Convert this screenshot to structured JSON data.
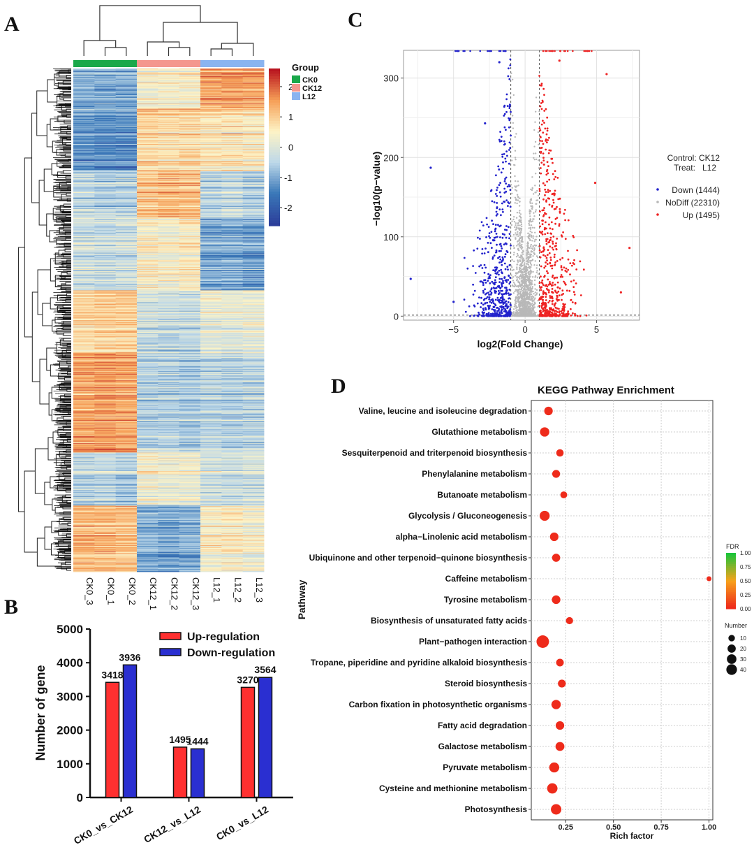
{
  "panel_labels": {
    "a": "A",
    "b": "B",
    "c": "C",
    "d": "D"
  },
  "chart_data": [
    {
      "panel": "A",
      "type": "heatmap",
      "legend_title": "Group",
      "groups": [
        {
          "name": "CK0",
          "color": "#1aa84a"
        },
        {
          "name": "CK12",
          "color": "#f4978e"
        },
        {
          "name": "L12",
          "color": "#8ab4f0"
        }
      ],
      "columns": [
        "CK0_3",
        "CK0_1",
        "CK0_2",
        "CK12_1",
        "CK12_2",
        "CK12_3",
        "L12_1",
        "L12_2",
        "L12_3"
      ],
      "column_groups": [
        "CK0",
        "CK0",
        "CK0",
        "CK12",
        "CK12",
        "CK12",
        "L12",
        "L12",
        "L12"
      ],
      "color_scale": {
        "ticks": [
          2,
          1,
          0,
          -1,
          -2
        ],
        "min": -2.6,
        "max": 2.6,
        "colors": [
          "#2c3e9a",
          "#3a78b8",
          "#bdd8e9",
          "#fdf3c6",
          "#f6a058",
          "#b9141f"
        ]
      },
      "row_blocks": [
        {
          "rows": 60,
          "values": [
            -1.0,
            -1.0,
            -1.0,
            0.4,
            0.4,
            0.4,
            1.5,
            1.6,
            1.5
          ]
        },
        {
          "rows": 95,
          "values": [
            -1.2,
            -1.3,
            -1.3,
            0.9,
            0.8,
            0.9,
            0.7,
            0.7,
            0.6
          ]
        },
        {
          "rows": 70,
          "values": [
            -0.4,
            -0.5,
            -0.5,
            1.1,
            1.3,
            1.2,
            -0.4,
            -0.3,
            -0.5
          ]
        },
        {
          "rows": 110,
          "values": [
            -0.2,
            -0.3,
            -0.2,
            0.5,
            0.4,
            0.6,
            -1.0,
            -1.0,
            -1.1
          ]
        },
        {
          "rows": 95,
          "values": [
            0.9,
            1.0,
            1.0,
            -0.2,
            -0.3,
            -0.3,
            0.2,
            0.1,
            0.2
          ]
        },
        {
          "rows": 150,
          "values": [
            1.4,
            1.5,
            1.4,
            -0.6,
            -0.6,
            -0.7,
            -0.5,
            -0.6,
            -0.5
          ]
        },
        {
          "rows": 80,
          "values": [
            -0.5,
            -0.4,
            -0.6,
            0.3,
            0.2,
            0.3,
            -0.2,
            -0.3,
            -0.2
          ]
        },
        {
          "rows": 100,
          "values": [
            1.3,
            1.3,
            1.2,
            -0.9,
            -1.0,
            -0.9,
            0.5,
            0.6,
            0.4
          ]
        }
      ]
    },
    {
      "panel": "B",
      "type": "bar",
      "categories": [
        "CK0_vs_CK12",
        "CK12_vs_L12",
        "CK0_vs_L12"
      ],
      "series": [
        {
          "name": "Up-regulation",
          "color": "#ff3030",
          "values": [
            3418,
            1495,
            3270
          ]
        },
        {
          "name": "Down-regulation",
          "color": "#2a2fd1",
          "values": [
            3936,
            1444,
            3564
          ]
        }
      ],
      "ylabel": "Number of gene",
      "ylim": [
        0,
        5000
      ],
      "yticks": [
        0,
        1000,
        2000,
        3000,
        4000,
        5000
      ],
      "legend_position": "top-right"
    },
    {
      "panel": "C",
      "type": "scatter",
      "title": "",
      "xlabel": "log2(Fold Change)",
      "ylabel": "−log10(p−value)",
      "xlim": [
        -8.5,
        8
      ],
      "ylim": [
        -5,
        335
      ],
      "xticks": [
        -5,
        0,
        5
      ],
      "ytick_labels": [
        "0",
        "100",
        "200",
        "300"
      ],
      "xtick_labels": [
        "−5",
        "0",
        "5"
      ],
      "grid": true,
      "thresholds": {
        "log2fc": [
          -1,
          1
        ],
        "p_line": 1.3
      },
      "control_label": "Control: CK12",
      "treat_label": "Treat:   L12",
      "series": [
        {
          "name": "Down (1444)",
          "color": "#2222cc"
        },
        {
          "name": "NoDiff (22310)",
          "color": "#b8b8b8"
        },
        {
          "name": "Up (1495)",
          "color": "#ee2222"
        }
      ],
      "highlight_points": [
        {
          "x": -6.6,
          "y": 187,
          "series": "Down (1444)"
        },
        {
          "x": -8.0,
          "y": 47,
          "series": "Down (1444)"
        },
        {
          "x": -5.0,
          "y": 18,
          "series": "Down (1444)"
        },
        {
          "x": -1.8,
          "y": 320,
          "series": "Down (1444)"
        },
        {
          "x": -2.8,
          "y": 243,
          "series": "Down (1444)"
        },
        {
          "x": 5.7,
          "y": 305,
          "series": "Up (1495)"
        },
        {
          "x": 7.3,
          "y": 86,
          "series": "Up (1495)"
        },
        {
          "x": 4.9,
          "y": 168,
          "series": "Up (1495)"
        },
        {
          "x": 6.7,
          "y": 30,
          "series": "Up (1495)"
        },
        {
          "x": 2.4,
          "y": 322,
          "series": "Up (1495)"
        }
      ],
      "legend_position": "right"
    },
    {
      "panel": "D",
      "type": "scatter",
      "title": "KEGG Pathway Enrichment",
      "xlabel": "Rich factor",
      "ylabel": "Pathway",
      "xlim": [
        0.07,
        1.02
      ],
      "xticks": [
        0.25,
        0.5,
        0.75,
        1.0
      ],
      "xtick_labels": [
        "0.25",
        "0.50",
        "0.75",
        "1.00"
      ],
      "grid": true,
      "pathways": [
        {
          "name": "Valine, leucine and isoleucine degradation",
          "rich_factor": 0.16,
          "number": 14,
          "fdr": 0.0
        },
        {
          "name": "Glutathione metabolism",
          "rich_factor": 0.14,
          "number": 18,
          "fdr": 0.0
        },
        {
          "name": "Sesquiterpenoid and triterpenoid biosynthesis",
          "rich_factor": 0.22,
          "number": 9,
          "fdr": 0.0
        },
        {
          "name": "Phenylalanine metabolism",
          "rich_factor": 0.2,
          "number": 11,
          "fdr": 0.0
        },
        {
          "name": "Butanoate metabolism",
          "rich_factor": 0.24,
          "number": 7,
          "fdr": 0.0
        },
        {
          "name": "Glycolysis / Gluconeogenesis",
          "rich_factor": 0.14,
          "number": 22,
          "fdr": 0.0
        },
        {
          "name": "alpha−Linolenic acid metabolism",
          "rich_factor": 0.19,
          "number": 14,
          "fdr": 0.0
        },
        {
          "name": "Ubiquinone and other terpenoid−quinone biosynthesis",
          "rich_factor": 0.2,
          "number": 12,
          "fdr": 0.0
        },
        {
          "name": "Caffeine metabolism",
          "rich_factor": 1.0,
          "number": 2,
          "fdr": 0.0
        },
        {
          "name": "Tyrosine metabolism",
          "rich_factor": 0.2,
          "number": 14,
          "fdr": 0.0
        },
        {
          "name": "Biosynthesis of unsaturated fatty acids",
          "rich_factor": 0.27,
          "number": 8,
          "fdr": 0.0
        },
        {
          "name": "Plant−pathogen interaction",
          "rich_factor": 0.13,
          "number": 40,
          "fdr": 0.0
        },
        {
          "name": "Tropane, piperidine and pyridine alkaloid biosynthesis",
          "rich_factor": 0.22,
          "number": 10,
          "fdr": 0.0
        },
        {
          "name": "Steroid biosynthesis",
          "rich_factor": 0.23,
          "number": 11,
          "fdr": 0.0
        },
        {
          "name": "Carbon fixation in photosynthetic organisms",
          "rich_factor": 0.2,
          "number": 18,
          "fdr": 0.0
        },
        {
          "name": "Fatty acid degradation",
          "rich_factor": 0.22,
          "number": 14,
          "fdr": 0.0
        },
        {
          "name": "Galactose metabolism",
          "rich_factor": 0.22,
          "number": 16,
          "fdr": 0.0
        },
        {
          "name": "Pyruvate metabolism",
          "rich_factor": 0.19,
          "number": 22,
          "fdr": 0.0
        },
        {
          "name": "Cysteine and methionine metabolism",
          "rich_factor": 0.18,
          "number": 24,
          "fdr": 0.0
        },
        {
          "name": "Photosynthesis",
          "rich_factor": 0.2,
          "number": 25,
          "fdr": 0.0
        }
      ],
      "fdr_legend": {
        "title": "FDR",
        "ticks": [
          "1.00",
          "0.75",
          "0.50",
          "0.25",
          "0.00"
        ],
        "low_color": "#ee2b1b",
        "high_color": "#1bc43a"
      },
      "size_legend": {
        "title": "Number",
        "values": [
          10,
          20,
          30,
          40
        ]
      }
    }
  ]
}
